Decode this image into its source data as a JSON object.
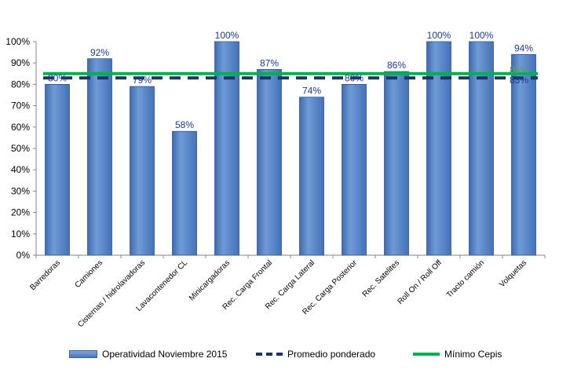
{
  "chart_data": {
    "type": "bar",
    "categories": [
      "Barredoras",
      "Camiones",
      "Cisternas / hidrolavadoras",
      "Lavacontenedor CL",
      "Minicargadoras",
      "Rec. Carga Frontal",
      "Rec. Carga Lateral",
      "Rec. Carga Posterior",
      "Rec. Satelites",
      "Roll On / Roll Off",
      "Tracto camión",
      "Volquetas"
    ],
    "series": [
      {
        "name": "Operatividad Noviembre 2015",
        "kind": "bar",
        "color": "#4f81bd",
        "values": [
          80,
          92,
          79,
          58,
          100,
          87,
          74,
          80,
          86,
          100,
          100,
          94
        ],
        "labels": [
          "80%",
          "92%",
          "79%",
          "58%",
          "100%",
          "87%",
          "74%",
          "80%",
          "86%",
          "100%",
          "100%",
          "94%"
        ]
      },
      {
        "name": "Promedio ponderado",
        "kind": "dashed-line",
        "color": "#17375e",
        "value": 83,
        "label": "83%"
      },
      {
        "name": "Mínimo Cepis",
        "kind": "line",
        "color": "#00b050",
        "value": 85,
        "label": "85%"
      }
    ],
    "ylim": [
      0,
      100
    ],
    "yticks": [
      "0%",
      "10%",
      "20%",
      "30%",
      "40%",
      "50%",
      "60%",
      "70%",
      "80%",
      "90%",
      "100%"
    ],
    "title": "",
    "xlabel": "",
    "ylabel": "",
    "grid": false,
    "legend": "bottom"
  }
}
